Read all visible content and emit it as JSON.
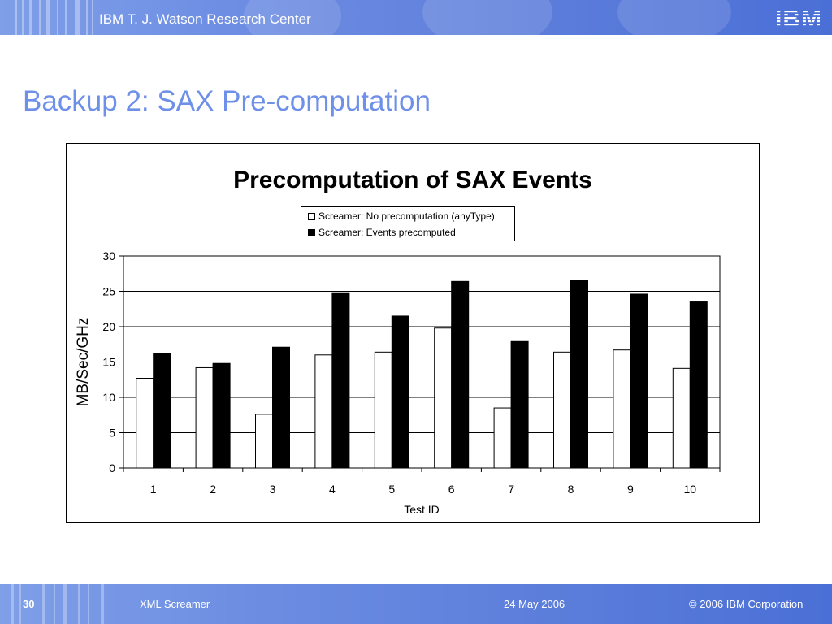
{
  "header": {
    "title": "IBM T. J. Watson Research Center",
    "logo": "IBM"
  },
  "slide": {
    "title": "Backup 2: SAX Pre-computation"
  },
  "footer": {
    "page": "30",
    "product": "XML Screamer",
    "date": "24 May 2006",
    "copyright": "© 2006 IBM Corporation"
  },
  "colors": {
    "accent": "#6f90e8",
    "band": "#5f7fdb",
    "series1": "#ffffff",
    "series2": "#000000"
  },
  "chart_data": {
    "type": "bar",
    "title": "Precomputation of SAX Events",
    "xlabel": "Test ID",
    "ylabel": "MB/Sec/GHz",
    "categories": [
      "1",
      "2",
      "3",
      "4",
      "5",
      "6",
      "7",
      "8",
      "9",
      "10"
    ],
    "ylim": [
      0,
      30
    ],
    "yticks": [
      "0",
      "5",
      "10",
      "15",
      "20",
      "25",
      "30"
    ],
    "grid": true,
    "legend_position": "top-center",
    "series": [
      {
        "name": "Screamer: No precomputation (anyType)",
        "color": "#ffffff",
        "values": [
          12.7,
          14.2,
          7.6,
          16.0,
          16.4,
          19.8,
          8.5,
          16.4,
          16.7,
          14.1
        ]
      },
      {
        "name": "Screamer: Events precomputed",
        "color": "#000000",
        "values": [
          16.2,
          14.8,
          17.1,
          24.8,
          21.5,
          26.4,
          17.9,
          26.6,
          24.6,
          23.5
        ]
      }
    ]
  }
}
